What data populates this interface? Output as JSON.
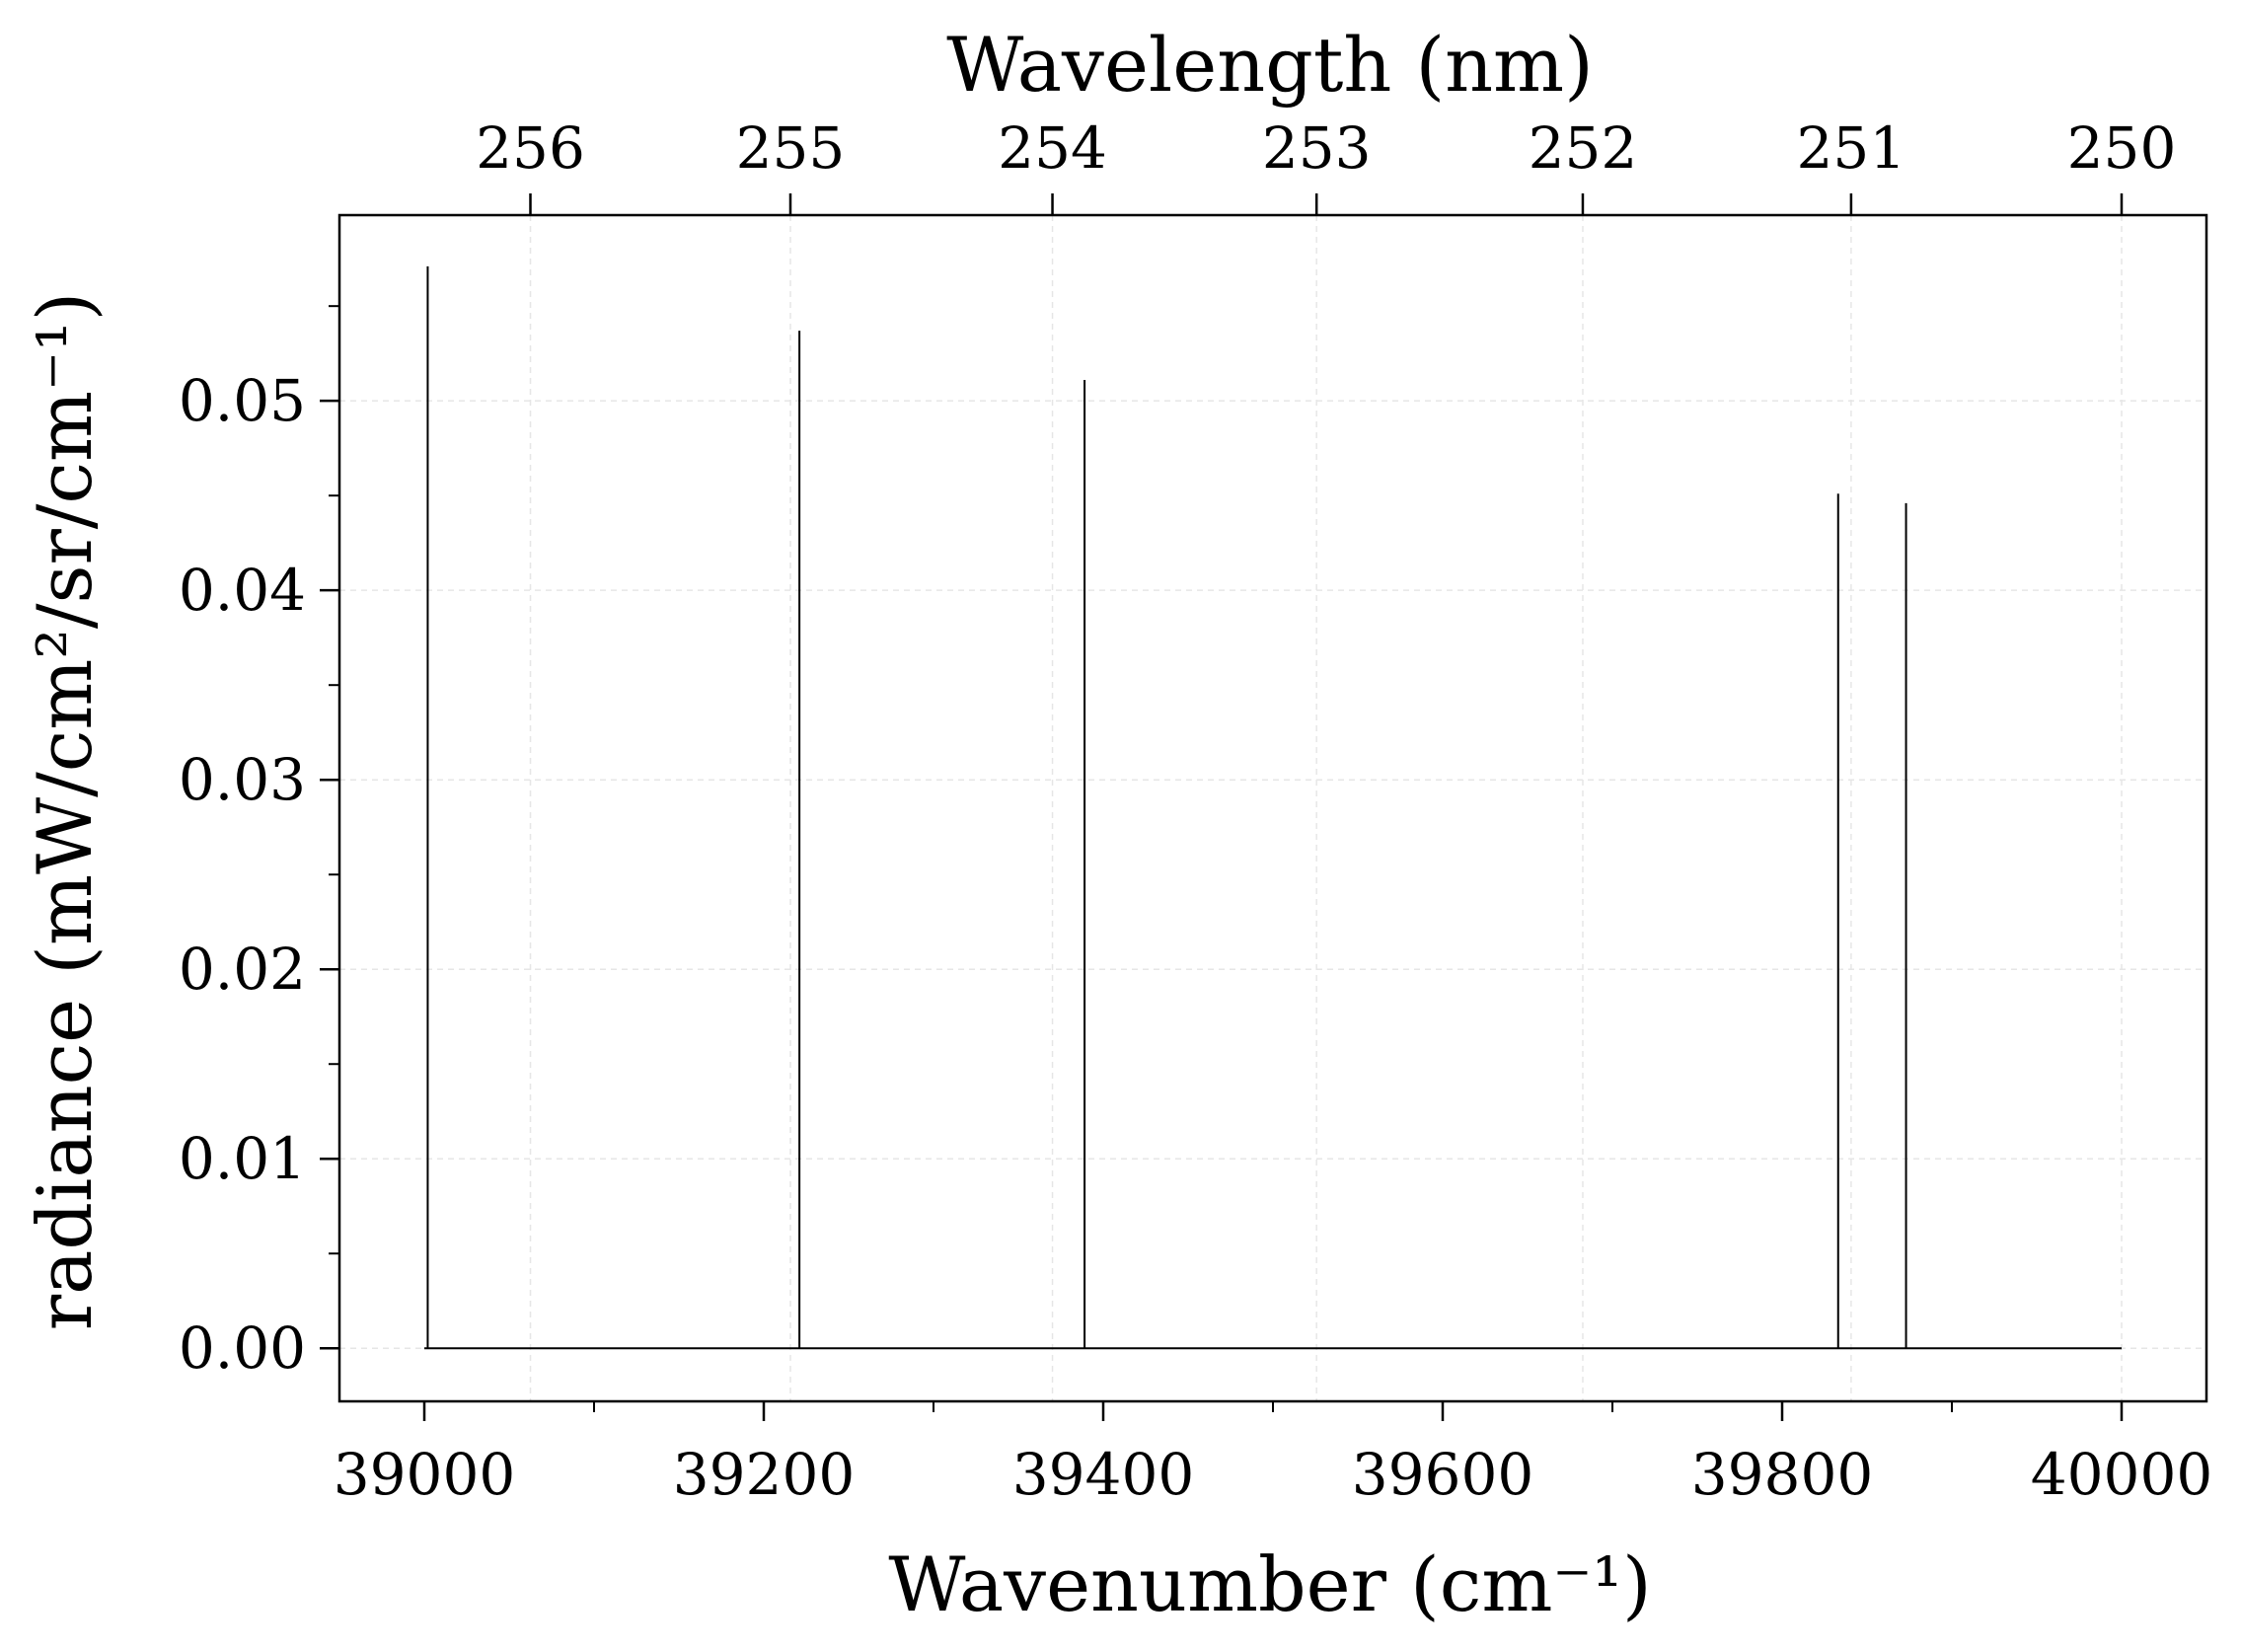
{
  "chart_data": {
    "type": "line",
    "title": "",
    "xlabel": "Wavenumber (cm⁻¹)",
    "ylabel": "radiance (mW/cm²/sr/cm⁻¹)",
    "x2label": "Wavelength (nm)",
    "xlim": [
      38950,
      40050
    ],
    "ylim": [
      -0.0028,
      0.0598
    ],
    "x_ticks": [
      39000,
      39200,
      39400,
      39600,
      39800,
      40000
    ],
    "x_tick_labels": [
      "39000",
      "39200",
      "39400",
      "39600",
      "39800",
      "40000"
    ],
    "y_ticks": [
      0.0,
      0.01,
      0.02,
      0.03,
      0.04,
      0.05
    ],
    "y_tick_labels": [
      "0.00",
      "0.01",
      "0.02",
      "0.03",
      "0.04",
      "0.05"
    ],
    "x2_ticks_nm": [
      256,
      255,
      254,
      253,
      252,
      251,
      250
    ],
    "x2_tick_labels": [
      "256",
      "255",
      "254",
      "253",
      "252",
      "251",
      "250"
    ],
    "grid": true,
    "line_color": "#000000",
    "series": [
      {
        "x": [
          39000,
          39002,
          39002,
          39002,
          39221,
          39221,
          39221,
          39389,
          39389,
          39389,
          39833,
          39833,
          39833,
          39873,
          39873,
          39873,
          40000
        ],
        "values": [
          0,
          0,
          0.0571,
          0,
          0,
          0.0537,
          0,
          0,
          0.0511,
          0,
          0,
          0.0451,
          0,
          0,
          0.0446,
          0,
          0
        ]
      }
    ]
  }
}
